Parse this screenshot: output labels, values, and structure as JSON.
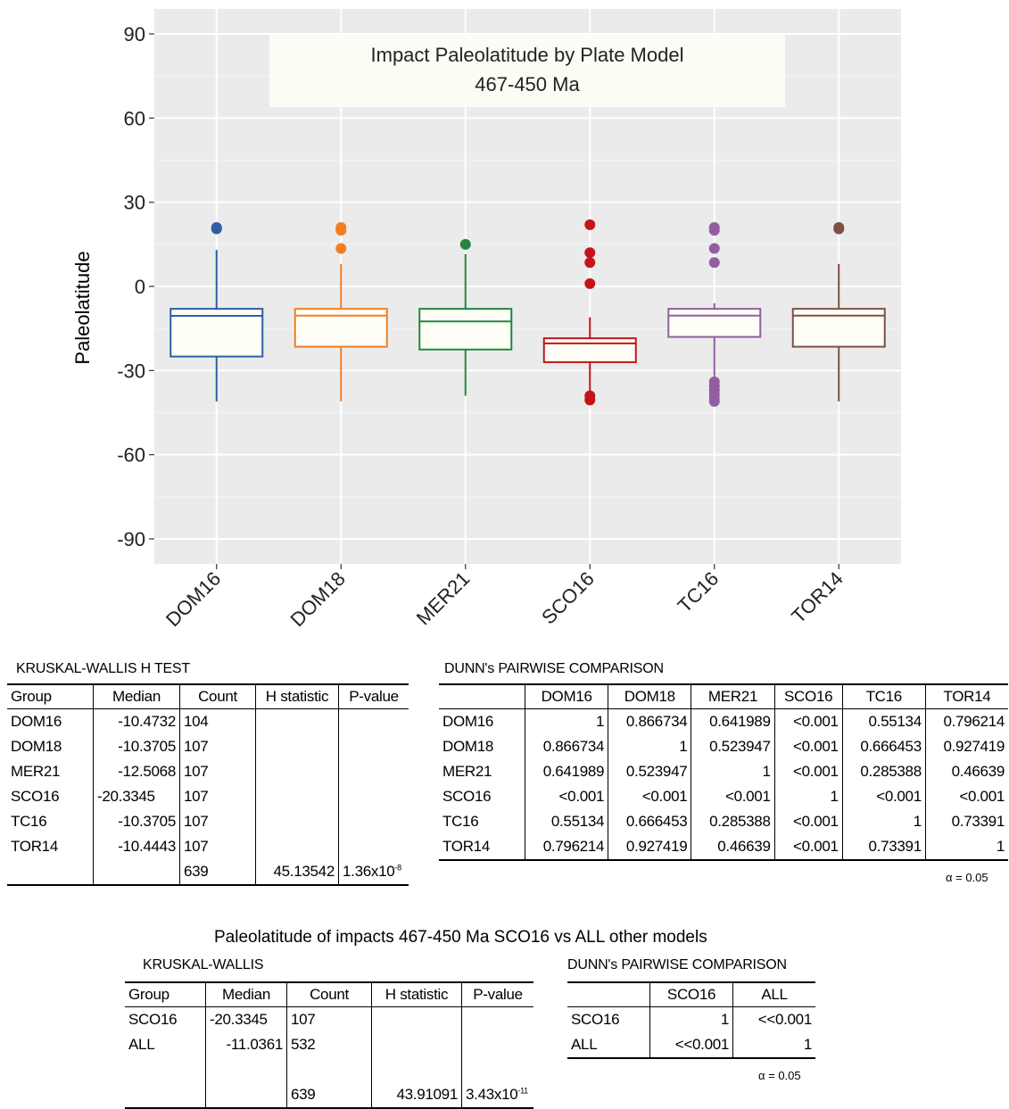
{
  "chart_data": {
    "type": "box",
    "title": "Impact Paleolatitude by Plate Model",
    "subtitle": "467-450 Ma",
    "ylabel": "Paleolatitude",
    "xlabel": "",
    "ylim": [
      -100,
      100
    ],
    "yticks": [
      90,
      60,
      30,
      0,
      -30,
      -60,
      -90
    ],
    "grid": true,
    "categories": [
      "DOM16",
      "DOM18",
      "MER21",
      "SCO16",
      "TC16",
      "TOR14"
    ],
    "boxes": [
      {
        "name": "DOM16",
        "color": "#2d5fa6",
        "q1": -25,
        "median": -10.5,
        "q3": -8,
        "whisker_low": -41,
        "whisker_high": 13,
        "outliers": [
          20.5,
          21
        ]
      },
      {
        "name": "DOM18",
        "color": "#f07f22",
        "q1": -21.5,
        "median": -10.4,
        "q3": -8,
        "whisker_low": -41,
        "whisker_high": 8,
        "outliers": [
          13.5,
          20,
          21
        ]
      },
      {
        "name": "MER21",
        "color": "#23863d",
        "q1": -22.5,
        "median": -12.5,
        "q3": -8,
        "whisker_low": -39,
        "whisker_high": 11.5,
        "outliers": [
          15
        ]
      },
      {
        "name": "SCO16",
        "color": "#c3141a",
        "q1": -27,
        "median": -20.3,
        "q3": -18.5,
        "whisker_low": -38,
        "whisker_high": -11,
        "outliers": [
          22,
          12,
          8.5,
          1,
          -39,
          -40.5
        ]
      },
      {
        "name": "TC16",
        "color": "#925da1",
        "q1": -18,
        "median": -10.4,
        "q3": -8,
        "whisker_low": -32,
        "whisker_high": -6,
        "outliers": [
          21,
          20,
          13.5,
          8.5,
          -34,
          -35.5,
          -37,
          -38.5,
          -40,
          -41
        ]
      },
      {
        "name": "TOR14",
        "color": "#7e4f41",
        "q1": -21.5,
        "median": -10.4,
        "q3": -8,
        "whisker_low": -41,
        "whisker_high": 8,
        "outliers": [
          20.5,
          21
        ]
      }
    ]
  },
  "kw1": {
    "caption": "KRUSKAL-WALLIS H TEST",
    "headers": [
      "Group",
      "Median",
      "Count",
      "H statistic",
      "P-value"
    ],
    "rows": [
      [
        "DOM16",
        "-10.4732",
        "104",
        "",
        ""
      ],
      [
        "DOM18",
        "-10.3705",
        "107",
        "",
        ""
      ],
      [
        "MER21",
        "-12.5068",
        "107",
        "",
        ""
      ],
      [
        "SCO16",
        "-20.3345",
        "107",
        "",
        ""
      ],
      [
        "TC16",
        "-10.3705",
        "107",
        "",
        ""
      ],
      [
        "TOR14",
        "-10.4443",
        "107",
        "",
        ""
      ]
    ],
    "total": [
      "",
      "",
      "639",
      "45.13542",
      "1.36x10",
      "-8"
    ]
  },
  "dunn1": {
    "caption": "DUNN's PAIRWISE COMPARISON",
    "headers": [
      "",
      "DOM16",
      "DOM18",
      "MER21",
      "SCO16",
      "TC16",
      "TOR14"
    ],
    "rows": [
      [
        "DOM16",
        "1",
        "0.866734",
        "0.641989",
        "<0.001",
        "0.55134",
        "0.796214"
      ],
      [
        "DOM18",
        "0.866734",
        "1",
        "0.523947",
        "<0.001",
        "0.666453",
        "0.927419"
      ],
      [
        "MER21",
        "0.641989",
        "0.523947",
        "1",
        "<0.001",
        "0.285388",
        "0.46639"
      ],
      [
        "SCO16",
        "<0.001",
        "<0.001",
        "<0.001",
        "1",
        "<0.001",
        "<0.001"
      ],
      [
        "TC16",
        "0.55134",
        "0.666453",
        "0.285388",
        "<0.001",
        "1",
        "0.73391"
      ],
      [
        "TOR14",
        "0.796214",
        "0.927419",
        "0.46639",
        "<0.001",
        "0.73391",
        "1"
      ]
    ],
    "alpha": "α = 0.05"
  },
  "section2": {
    "title": "Paleolatitude of impacts 467-450 Ma SCO16 vs ALL other models"
  },
  "kw2": {
    "caption": "KRUSKAL-WALLIS",
    "headers": [
      "Group",
      "Median",
      "Count",
      "H statistic",
      "P-value"
    ],
    "rows": [
      [
        "SCO16",
        "-20.3345",
        "107",
        "",
        ""
      ],
      [
        "ALL",
        "-11.0361",
        "532",
        "",
        ""
      ],
      [
        "",
        "",
        "",
        "",
        ""
      ]
    ],
    "total": [
      "",
      "",
      "639",
      "43.91091",
      "3.43x10",
      "-11"
    ]
  },
  "dunn2": {
    "caption": "DUNN's PAIRWISE COMPARISON",
    "headers": [
      "",
      "SCO16",
      "ALL"
    ],
    "rows": [
      [
        "SCO16",
        "1",
        "<<0.001"
      ],
      [
        "ALL",
        "<<0.001",
        "1"
      ]
    ],
    "alpha": "α = 0.05"
  }
}
